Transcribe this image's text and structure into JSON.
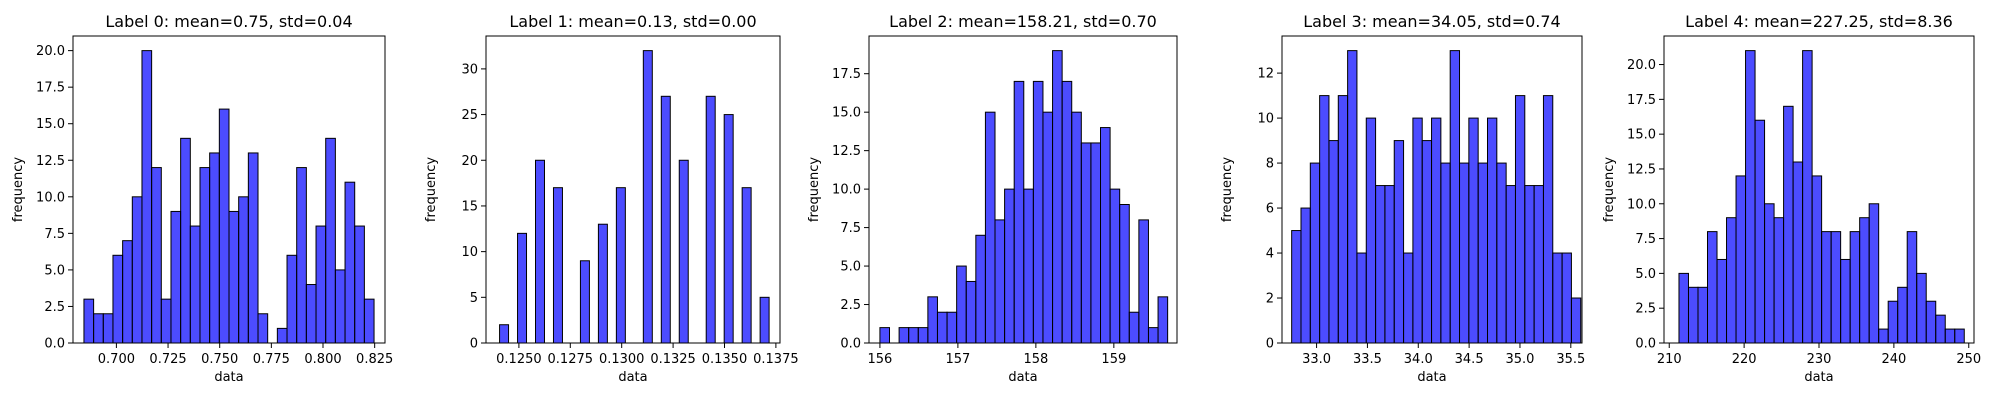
{
  "figure": {
    "bar_fill": "#0000ff",
    "bar_fill_opacity": 0.7,
    "bar_edge": "#000000",
    "background": "#ffffff"
  },
  "chart_data": [
    {
      "type": "bar",
      "title": "Label 0: mean=0.75, std=0.04",
      "xlabel": "data",
      "ylabel": "frequency",
      "xlim": [
        0.679,
        0.83
      ],
      "ylim": [
        0,
        21
      ],
      "bin_start": 0.6843,
      "bin_width": 0.00468,
      "values": [
        3,
        2,
        2,
        6,
        7,
        10,
        20,
        12,
        3,
        9,
        14,
        8,
        12,
        13,
        16,
        9,
        10,
        13,
        2,
        0,
        1,
        6,
        12,
        4,
        8,
        14,
        5,
        11,
        8,
        3
      ],
      "xticks": [
        0.7,
        0.725,
        0.75,
        0.775,
        0.8,
        0.825
      ],
      "xtick_labels": [
        "0.700",
        "0.725",
        "0.750",
        "0.775",
        "0.800",
        "0.825"
      ],
      "yticks": [
        0,
        2.5,
        5,
        7.5,
        10,
        12.5,
        15,
        17.5,
        20
      ],
      "ytick_labels": [
        "0.0",
        "2.5",
        "5.0",
        "7.5",
        "10.0",
        "12.5",
        "15.0",
        "17.5",
        "20.0"
      ],
      "grid": false,
      "legend": "none"
    },
    {
      "type": "bar",
      "title": "Label 1: mean=0.13, std=0.00",
      "xlabel": "data",
      "ylabel": "frequency",
      "xlim": [
        0.1234,
        0.1377
      ],
      "ylim": [
        0,
        33.6
      ],
      "bin_start": 0.12406,
      "bin_width": 0.000437,
      "values": [
        2,
        0,
        12,
        0,
        20,
        0,
        17,
        0,
        0,
        9,
        0,
        13,
        0,
        17,
        0,
        0,
        32,
        0,
        27,
        0,
        20,
        0,
        0,
        27,
        0,
        25,
        0,
        17,
        0,
        5
      ],
      "xticks": [
        0.125,
        0.1275,
        0.13,
        0.1325,
        0.135,
        0.1375
      ],
      "xtick_labels": [
        "0.1250",
        "0.1275",
        "0.1300",
        "0.1325",
        "0.1350",
        "0.1375"
      ],
      "yticks": [
        0,
        5,
        10,
        15,
        20,
        25,
        30
      ],
      "ytick_labels": [
        "0",
        "5",
        "10",
        "15",
        "20",
        "25",
        "30"
      ],
      "grid": false,
      "legend": "none"
    },
    {
      "type": "bar",
      "title": "Label 2: mean=158.21, std=0.70",
      "xlabel": "data",
      "ylabel": "frequency",
      "xlim": [
        155.86,
        159.81
      ],
      "ylim": [
        0,
        19.95
      ],
      "bin_start": 156.0,
      "bin_width": 0.123,
      "values": [
        1,
        0,
        1,
        1,
        1,
        3,
        2,
        2,
        5,
        4,
        7,
        15,
        8,
        10,
        17,
        10,
        17,
        15,
        19,
        17,
        15,
        13,
        13,
        14,
        10,
        9,
        2,
        8,
        1,
        3
      ],
      "xticks": [
        156,
        157,
        158,
        159
      ],
      "xtick_labels": [
        "156",
        "157",
        "158",
        "159"
      ],
      "yticks": [
        0,
        2.5,
        5,
        7.5,
        10,
        12.5,
        15,
        17.5
      ],
      "ytick_labels": [
        "0.0",
        "2.5",
        "5.0",
        "7.5",
        "10.0",
        "12.5",
        "15.0",
        "17.5"
      ],
      "grid": false,
      "legend": "none"
    },
    {
      "type": "bar",
      "title": "Label 3: mean=34.05, std=0.74",
      "xlabel": "data",
      "ylabel": "frequency",
      "xlim": [
        32.66,
        35.61
      ],
      "ylim": [
        0,
        13.65
      ],
      "bin_start": 32.755,
      "bin_width": 0.0917,
      "values": [
        5,
        6,
        8,
        11,
        9,
        11,
        13,
        4,
        10,
        7,
        7,
        9,
        4,
        10,
        9,
        10,
        8,
        13,
        8,
        10,
        8,
        10,
        8,
        7,
        11,
        7,
        7,
        11,
        4,
        4,
        2
      ],
      "xticks": [
        33.0,
        33.5,
        34.0,
        34.5,
        35.0,
        35.5
      ],
      "xtick_labels": [
        "33.0",
        "33.5",
        "34.0",
        "34.5",
        "35.0",
        "35.5"
      ],
      "yticks": [
        0,
        2,
        4,
        6,
        8,
        10,
        12
      ],
      "ytick_labels": [
        "0",
        "2",
        "4",
        "6",
        "8",
        "10",
        "12"
      ],
      "grid": false,
      "legend": "none"
    },
    {
      "type": "bar",
      "title": "Label 4: mean=227.25, std=8.36",
      "xlabel": "data",
      "ylabel": "frequency",
      "xlim": [
        209.3,
        250.7
      ],
      "ylim": [
        0,
        22.05
      ],
      "bin_start": 211.3,
      "bin_width": 1.27,
      "values": [
        5,
        4,
        4,
        8,
        6,
        9,
        12,
        21,
        16,
        10,
        9,
        17,
        13,
        21,
        12,
        8,
        8,
        6,
        8,
        9,
        10,
        1,
        3,
        4,
        8,
        5,
        3,
        2,
        1,
        1
      ],
      "xticks": [
        210,
        220,
        230,
        240,
        250
      ],
      "xtick_labels": [
        "210",
        "220",
        "230",
        "240",
        "250"
      ],
      "yticks": [
        0,
        2.5,
        5,
        7.5,
        10,
        12.5,
        15,
        17.5,
        20
      ],
      "ytick_labels": [
        "0.0",
        "2.5",
        "5.0",
        "7.5",
        "10.0",
        "12.5",
        "15.0",
        "17.5",
        "20.0"
      ],
      "grid": false,
      "legend": "none"
    }
  ]
}
